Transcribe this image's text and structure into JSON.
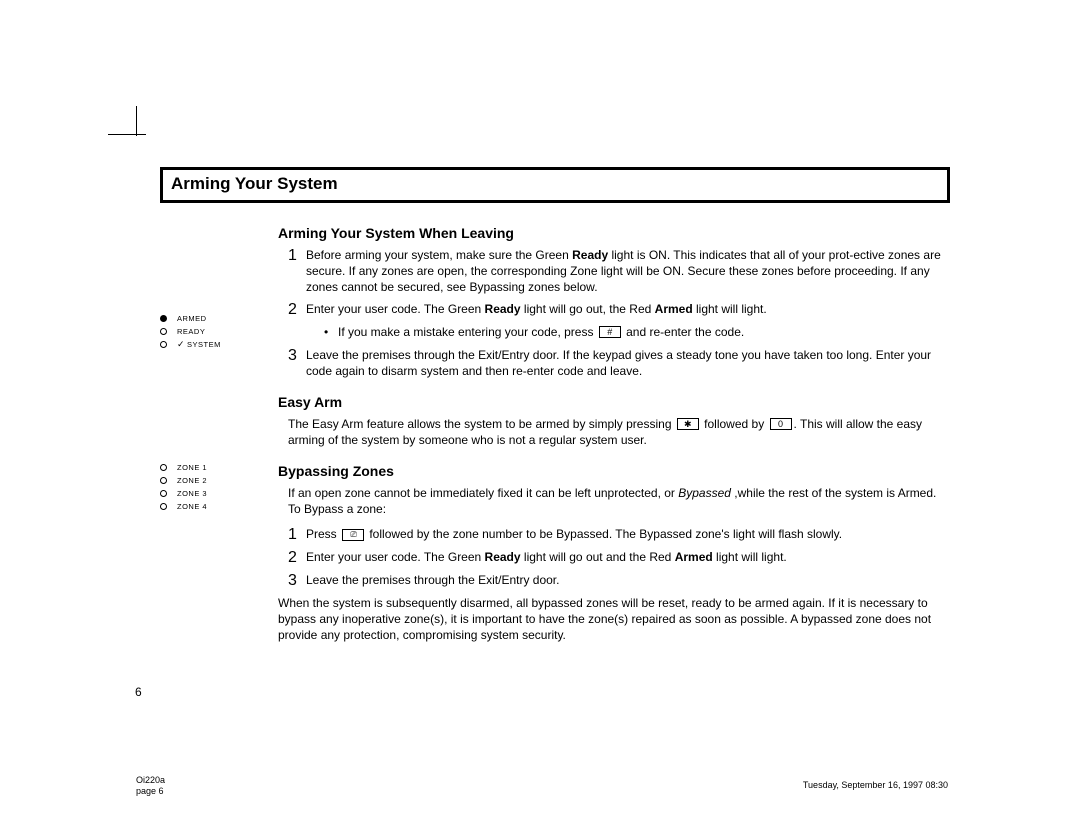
{
  "title": "Arming Your System",
  "sidebar_status": [
    {
      "label": "ARMED",
      "filled": true,
      "prefix": ""
    },
    {
      "label": "READY",
      "filled": false,
      "prefix": ""
    },
    {
      "label": "SYSTEM",
      "filled": false,
      "prefix": "✓"
    }
  ],
  "sidebar_zones": [
    {
      "label": "ZONE 1"
    },
    {
      "label": "ZONE 2"
    },
    {
      "label": "ZONE 3"
    },
    {
      "label": "ZONE 4"
    }
  ],
  "s1": {
    "heading": "Arming Your System When Leaving",
    "step1_a": "Before arming your system, make sure the Green ",
    "step1_b": "Ready",
    "step1_c": " light is ON. This indicates that all of your prot-ective zones are secure. If any zones are open, the corresponding Zone light will be ON. Secure these zones before proceeding. If any zones cannot be secured,  see Bypassing zones below.",
    "step2_a": "Enter your user code. The Green ",
    "step2_b": "Ready",
    "step2_c": " light will go out,  the Red ",
    "step2_d": "Armed",
    "step2_e": " light will light.",
    "bullet_a": "If you make a mistake entering your code, press ",
    "key_hash": "#",
    "bullet_b": "  and re-enter the code.",
    "step3": "Leave the premises through the Exit/Entry door.  If  the keypad gives a steady tone you have taken too long. Enter your code again to disarm system and then re-enter code and leave."
  },
  "s2": {
    "heading": "Easy Arm",
    "p1_a": "The Easy Arm feature allows the system to be armed by simply pressing ",
    "key_star": "✱",
    "p1_b": " followed by ",
    "key_zero": "0",
    "p1_c": ". This will allow   the easy arming of  the system by  someone who is not a regular system user."
  },
  "s3": {
    "heading": "Bypassing  Zones",
    "intro_a": "If an open zone cannot be immediately fixed it can be left unprotected, or ",
    "intro_b": "Bypassed",
    "intro_c": " ,while the rest of  the system is Armed. To Bypass a zone:",
    "step1_a": "Press ",
    "key_byp": "⎚",
    "step1_b": "  followed by the zone number to be Bypassed. The Bypassed zone's light will flash slowly.",
    "step2_a": "Enter your user code. The Green ",
    "step2_b": "Ready",
    "step2_c": "  light will go out and the Red ",
    "step2_d": "Armed",
    "step2_e": " light will light.",
    "step3": "Leave the premises through the Exit/Entry door.",
    "outro": "When the system is subsequently disarmed, all bypassed zones will be reset,  ready to be armed again. If it is necessary to bypass any inoperative zone(s), it is important to have the zone(s) repaired as soon as possible. A  bypassed zone does not provide any protection, compromising  system security."
  },
  "pagenum": "6",
  "footer_left_1": "Oi220a",
  "footer_left_2": "page 6",
  "footer_right": "Tuesday, September 16, 1997 08:30"
}
